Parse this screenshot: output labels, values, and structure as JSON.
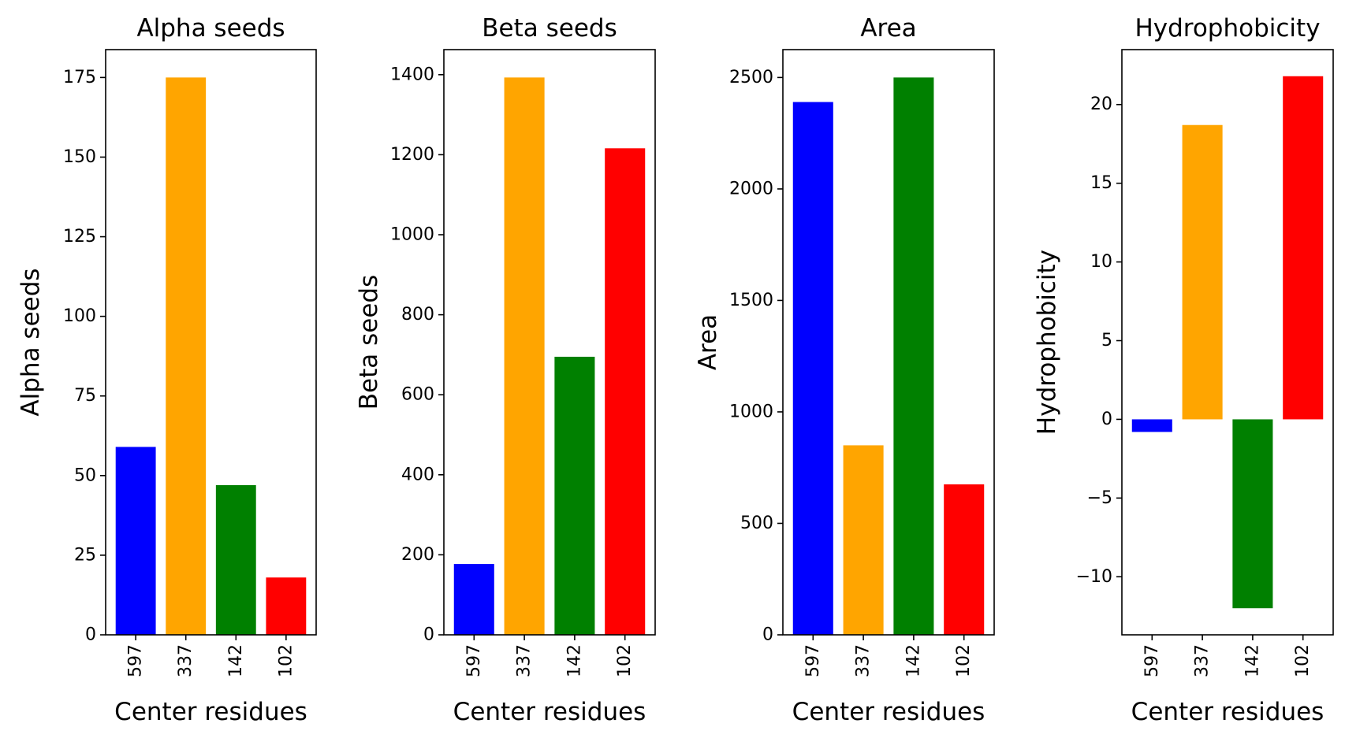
{
  "colors": [
    "#0000ff",
    "#ffa500",
    "#008000",
    "#ff0000"
  ],
  "chart_data": [
    {
      "type": "bar",
      "title": "Alpha seeds",
      "xlabel": "Center residues",
      "ylabel": "Alpha seeds",
      "categories": [
        "597",
        "337",
        "142",
        "102"
      ],
      "values": [
        59,
        175,
        47,
        18
      ],
      "ylim": [
        0,
        183.75
      ],
      "yticks": [
        0,
        25,
        50,
        75,
        100,
        125,
        150,
        175
      ],
      "ytick_labels": [
        "0",
        "25",
        "50",
        "75",
        "100",
        "125",
        "150",
        "175"
      ]
    },
    {
      "type": "bar",
      "title": "Beta seeds",
      "xlabel": "Center residues",
      "ylabel": "Beta seeds",
      "categories": [
        "597",
        "337",
        "142",
        "102"
      ],
      "values": [
        177,
        1393,
        695,
        1216
      ],
      "ylim": [
        0,
        1462.65
      ],
      "yticks": [
        0,
        200,
        400,
        600,
        800,
        1000,
        1200,
        1400
      ],
      "ytick_labels": [
        "0",
        "200",
        "400",
        "600",
        "800",
        "1000",
        "1200",
        "1400"
      ]
    },
    {
      "type": "bar",
      "title": "Area",
      "xlabel": "Center residues",
      "ylabel": "Area",
      "categories": [
        "597",
        "337",
        "142",
        "102"
      ],
      "values": [
        2390,
        850,
        2500,
        675
      ],
      "ylim": [
        0,
        2625
      ],
      "yticks": [
        0,
        500,
        1000,
        1500,
        2000,
        2500
      ],
      "ytick_labels": [
        "0",
        "500",
        "1000",
        "1500",
        "2000",
        "2500"
      ]
    },
    {
      "type": "bar",
      "title": "Hydrophobicity",
      "xlabel": "Center residues",
      "ylabel": "Hydrophobicity",
      "categories": [
        "597",
        "337",
        "142",
        "102"
      ],
      "values": [
        -0.8,
        18.7,
        -12.0,
        21.8
      ],
      "ylim": [
        -13.69,
        23.49
      ],
      "yticks": [
        -10,
        -5,
        0,
        5,
        10,
        15,
        20
      ],
      "ytick_labels": [
        "−10",
        "−5",
        "0",
        "5",
        "10",
        "15",
        "20"
      ]
    }
  ]
}
